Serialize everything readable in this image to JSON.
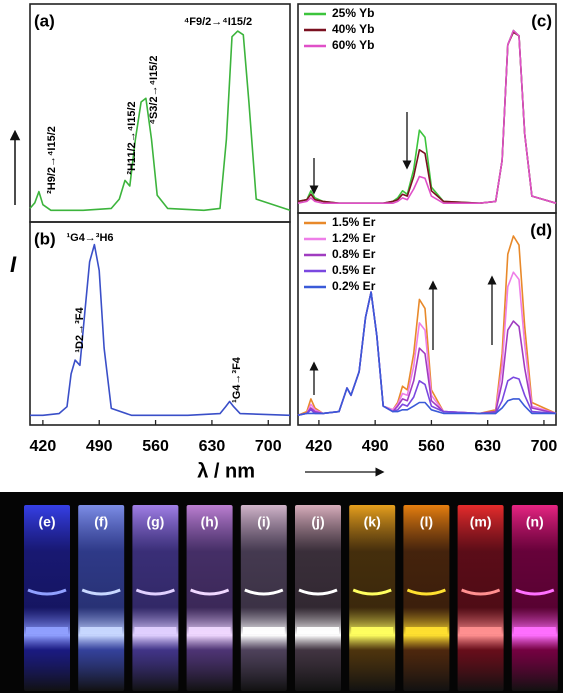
{
  "chart_data": [
    {
      "type": "line",
      "panel_label": "(a)",
      "xlim": [
        404,
        727
      ],
      "ylim": [
        0,
        105
      ],
      "x": [
        404,
        410,
        415,
        420,
        430,
        470,
        505,
        515,
        522,
        528,
        535,
        542,
        548,
        555,
        562,
        575,
        620,
        640,
        648,
        655,
        662,
        669,
        676,
        685,
        727
      ],
      "series": [
        {
          "name": null,
          "color": "#3cb43c",
          "values": [
            3,
            6,
            12,
            5,
            2,
            2,
            3,
            8,
            18,
            15,
            40,
            60,
            62,
            40,
            10,
            3,
            2,
            3,
            40,
            95,
            98,
            96,
            60,
            8,
            2
          ]
        }
      ],
      "annotations": [
        "²H9/2→⁴I15/2",
        "²H11/2→⁴I15/2",
        "⁴S3/2→⁴I15/2",
        "⁴F9/2→⁴I15/2"
      ]
    },
    {
      "type": "line",
      "panel_label": "(b)",
      "xlim": [
        404,
        727
      ],
      "ylim": [
        0,
        105
      ],
      "xticks": [
        420,
        490,
        560,
        630,
        700
      ],
      "x": [
        404,
        420,
        440,
        450,
        455,
        460,
        466,
        472,
        478,
        484,
        490,
        496,
        505,
        530,
        600,
        640,
        647,
        652,
        657,
        665,
        727
      ],
      "series": [
        {
          "name": null,
          "color": "#3a4fc8",
          "values": [
            1,
            1,
            2,
            6,
            25,
            33,
            30,
            60,
            90,
            100,
            85,
            40,
            5,
            1,
            1,
            2,
            6,
            9,
            6,
            2,
            1
          ]
        }
      ],
      "annotations": [
        "¹G4→³H6",
        "¹D2→³F4",
        "¹G4→³F4"
      ]
    },
    {
      "type": "line",
      "panel_label": "(c)",
      "xlim": [
        394,
        715
      ],
      "ylim": [
        0,
        105
      ],
      "legend": "upper left",
      "x": [
        394,
        405,
        410,
        415,
        425,
        445,
        455,
        460,
        470,
        478,
        485,
        492,
        500,
        512,
        518,
        524,
        530,
        538,
        545,
        552,
        560,
        575,
        620,
        640,
        648,
        655,
        662,
        669,
        676,
        685,
        715
      ],
      "series": [
        {
          "name": "25% Yb",
          "color": "#3cc43c",
          "values": [
            2,
            3,
            8,
            4,
            2,
            1,
            1,
            1,
            1,
            1,
            1,
            1,
            1,
            2,
            4,
            8,
            6,
            20,
            42,
            38,
            10,
            2,
            1,
            2,
            25,
            90,
            98,
            95,
            40,
            5,
            1
          ]
        },
        {
          "name": "40% Yb",
          "color": "#7a1020",
          "values": [
            2,
            3,
            6,
            3,
            2,
            1,
            1,
            1,
            1,
            1,
            1,
            1,
            1,
            2,
            3,
            6,
            5,
            16,
            31,
            29,
            8,
            2,
            1,
            2,
            25,
            90,
            97,
            95,
            40,
            5,
            1
          ]
        },
        {
          "name": "60% Yb",
          "color": "#e050c8",
          "values": [
            1,
            2,
            4,
            2,
            1,
            1,
            1,
            1,
            1,
            1,
            1,
            1,
            1,
            1,
            2,
            4,
            3,
            9,
            16,
            15,
            5,
            1,
            1,
            2,
            25,
            90,
            98,
            95,
            40,
            5,
            1
          ]
        }
      ]
    },
    {
      "type": "line",
      "panel_label": "(d)",
      "xlim": [
        394,
        715
      ],
      "ylim": [
        0,
        105
      ],
      "xticks": [
        420,
        490,
        560,
        630,
        700
      ],
      "legend": "upper left",
      "x": [
        394,
        405,
        410,
        415,
        425,
        445,
        455,
        460,
        470,
        478,
        485,
        492,
        500,
        512,
        518,
        524,
        530,
        538,
        545,
        552,
        560,
        575,
        620,
        640,
        648,
        655,
        662,
        669,
        676,
        685,
        715
      ],
      "series": [
        {
          "name": "1.5% Er",
          "color": "#e8892a",
          "values": [
            1,
            3,
            10,
            5,
            2,
            3,
            16,
            12,
            25,
            55,
            69,
            45,
            6,
            4,
            8,
            17,
            15,
            35,
            65,
            60,
            15,
            3,
            2,
            4,
            35,
            90,
            100,
            95,
            50,
            8,
            2
          ]
        },
        {
          "name": "1.2% Er",
          "color": "#ee7ee8",
          "values": [
            1,
            2,
            7,
            4,
            2,
            3,
            16,
            12,
            25,
            55,
            69,
            45,
            6,
            4,
            7,
            13,
            12,
            28,
            52,
            48,
            12,
            3,
            2,
            3,
            28,
            72,
            80,
            76,
            40,
            6,
            2
          ]
        },
        {
          "name": "0.8% Er",
          "color": "#a03cc0",
          "values": [
            1,
            2,
            5,
            3,
            2,
            3,
            16,
            12,
            25,
            55,
            69,
            45,
            6,
            3,
            6,
            10,
            9,
            20,
            38,
            35,
            9,
            3,
            2,
            3,
            19,
            48,
            53,
            50,
            27,
            5,
            2
          ]
        },
        {
          "name": "0.5% Er",
          "color": "#7a48e0",
          "values": [
            1,
            2,
            4,
            2,
            2,
            3,
            16,
            12,
            25,
            55,
            69,
            45,
            6,
            3,
            4,
            7,
            6,
            11,
            20,
            18,
            6,
            3,
            2,
            2,
            9,
            20,
            22,
            21,
            12,
            3,
            2
          ]
        },
        {
          "name": "0.2% Er",
          "color": "#3a5ad8",
          "values": [
            1,
            2,
            2,
            2,
            2,
            3,
            16,
            12,
            25,
            55,
            69,
            45,
            6,
            3,
            3,
            4,
            4,
            6,
            8,
            8,
            4,
            2,
            2,
            2,
            5,
            9,
            10,
            10,
            6,
            2,
            2
          ]
        }
      ]
    }
  ],
  "xlabel": "λ / nm",
  "ylabel": "I",
  "photo": {
    "labels": [
      "(e)",
      "(f)",
      "(g)",
      "(h)",
      "(i)",
      "(j)",
      "(k)",
      "(l)",
      "(m)",
      "(n)"
    ]
  }
}
